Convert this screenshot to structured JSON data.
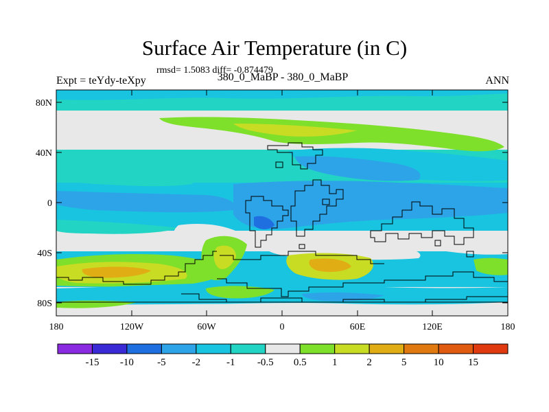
{
  "title": "Surface Air Temperature (in C)",
  "stats": "rmsd= 1.5083 diff= -0.874479",
  "left_label": "Expt = teYdy-teXpy",
  "center_label": "380_0_MaBP - 380_0_MaBP",
  "right_label": "ANN",
  "lat_ticks": [
    "80N",
    "40N",
    "0",
    "40S",
    "80S"
  ],
  "lon_ticks": [
    "180",
    "120W",
    "60W",
    "0",
    "60E",
    "120E",
    "180"
  ],
  "colorbar": {
    "labels": [
      "-15",
      "-10",
      "-5",
      "-2",
      "-1",
      "-0.5",
      "0.5",
      "1",
      "2",
      "5",
      "10",
      "15"
    ],
    "colors": [
      "#8a2be2",
      "#3a2ad6",
      "#1f6fe0",
      "#2ea4e8",
      "#19c4e0",
      "#22d4c4",
      "#e8e8e8",
      "#7ee02a",
      "#c8dc24",
      "#e0ae14",
      "#e07a10",
      "#e05a10",
      "#e03a10"
    ]
  },
  "palette": {
    "neutral": "#e8e8e8",
    "cool_light": "#22d4c4",
    "cool": "#19c4e0",
    "cold": "#2ea4e8",
    "colder": "#1f6fe0",
    "coldest": "#3a2ad6",
    "warm_light": "#7ee02a",
    "warm": "#c8dc24",
    "warmer": "#e0ae14"
  }
}
